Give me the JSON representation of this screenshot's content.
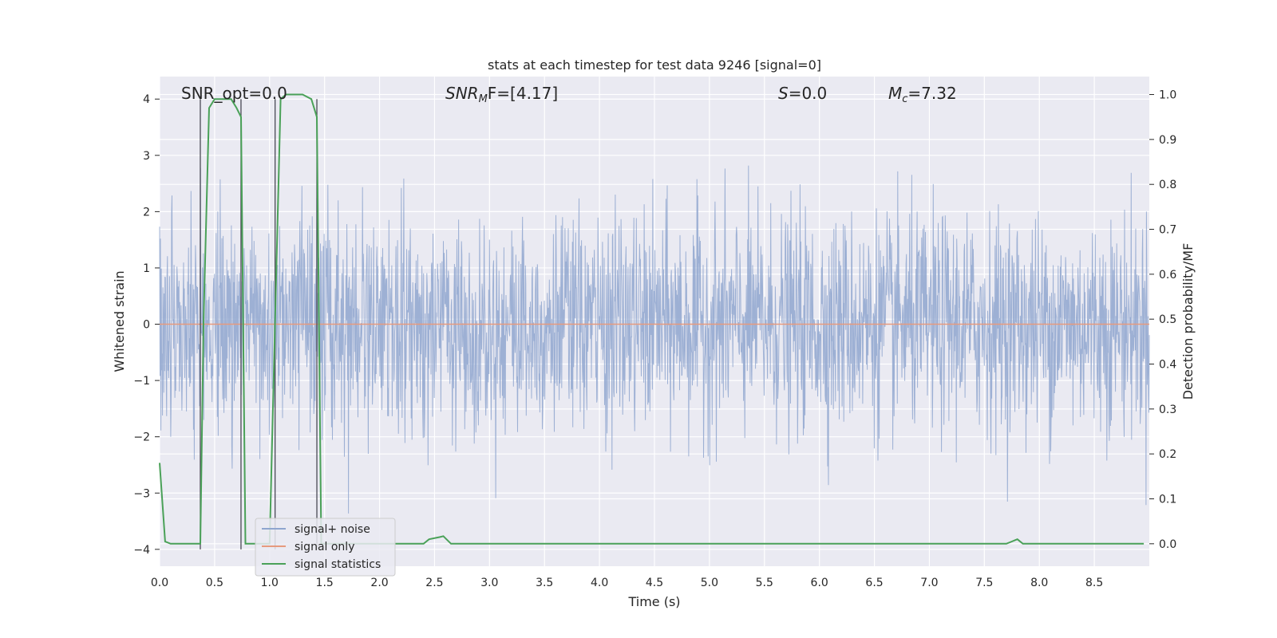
{
  "chart_data": {
    "type": "line",
    "title": "stats at each timestep for test data 9246 [signal=0]",
    "xlabel": "Time (s)",
    "ylabel": "Whitened strain",
    "ylabel_right": "Detection probability/MF",
    "xlim": [
      0.0,
      9.0
    ],
    "ylim": [
      -4.3,
      4.4
    ],
    "ylim_right": [
      -0.05,
      1.04
    ],
    "x_ticks": [
      "0.0",
      "0.5",
      "1.0",
      "1.5",
      "2.0",
      "2.5",
      "3.0",
      "3.5",
      "4.0",
      "4.5",
      "5.0",
      "5.5",
      "6.0",
      "6.5",
      "7.0",
      "7.5",
      "8.0",
      "8.5"
    ],
    "y_ticks": [
      "−4",
      "−3",
      "−2",
      "−1",
      "0",
      "1",
      "2",
      "3",
      "4"
    ],
    "y_ticks_right": [
      "0.0",
      "0.1",
      "0.2",
      "0.3",
      "0.4",
      "0.5",
      "0.6",
      "0.7",
      "0.8",
      "0.9",
      "1.0"
    ],
    "grid": true,
    "legend_position": "lower-left",
    "annotations": {
      "snr_opt": "SNR_opt=0.0",
      "snr_mf_base": "SNR",
      "snr_mf_sub": "M",
      "snr_mf_rest": "F=[4.17]",
      "s_var": "S",
      "s_rest": "=0.0",
      "mc_base": "M",
      "mc_sub": "c",
      "mc_rest": "=7.32"
    },
    "vertical_markers": [
      0.37,
      0.74,
      1.05,
      1.43
    ],
    "series": [
      {
        "name": "signal+ noise",
        "color": "#8fa6cf",
        "description_values": "noise band approx ±2.5 peaks, dense",
        "amplitude": 1.6
      },
      {
        "name": "signal only",
        "color": "#e69a7e",
        "values_constant": 0.0
      },
      {
        "name": "signal statistics",
        "color": "#4aa158",
        "axis": "right",
        "x": [
          0.0,
          0.05,
          0.1,
          0.15,
          0.2,
          0.37,
          0.4,
          0.45,
          0.5,
          0.55,
          0.6,
          0.65,
          0.7,
          0.74,
          0.78,
          0.82,
          0.86,
          0.9,
          1.0,
          1.05,
          1.1,
          1.15,
          1.2,
          1.3,
          1.38,
          1.43,
          1.47,
          1.52,
          2.0,
          2.4,
          2.45,
          2.55,
          2.58,
          2.65,
          3.0,
          4.0,
          5.0,
          6.0,
          7.0,
          7.7,
          7.75,
          7.8,
          7.85,
          8.0,
          8.5,
          8.95
        ],
        "y": [
          0.18,
          0.005,
          0.0,
          0.0,
          0.0,
          0.0,
          0.5,
          0.97,
          0.99,
          0.99,
          0.99,
          0.99,
          0.97,
          0.95,
          0.0,
          0.0,
          0.0,
          0.0,
          0.0,
          0.5,
          0.99,
          1.0,
          1.0,
          1.0,
          0.99,
          0.95,
          0.0,
          0.0,
          0.0,
          0.0,
          0.01,
          0.015,
          0.017,
          0.0,
          0.0,
          0.0,
          0.0,
          0.0,
          0.0,
          0.0,
          0.005,
          0.01,
          0.0,
          0.0,
          0.0,
          0.0
        ]
      }
    ]
  }
}
